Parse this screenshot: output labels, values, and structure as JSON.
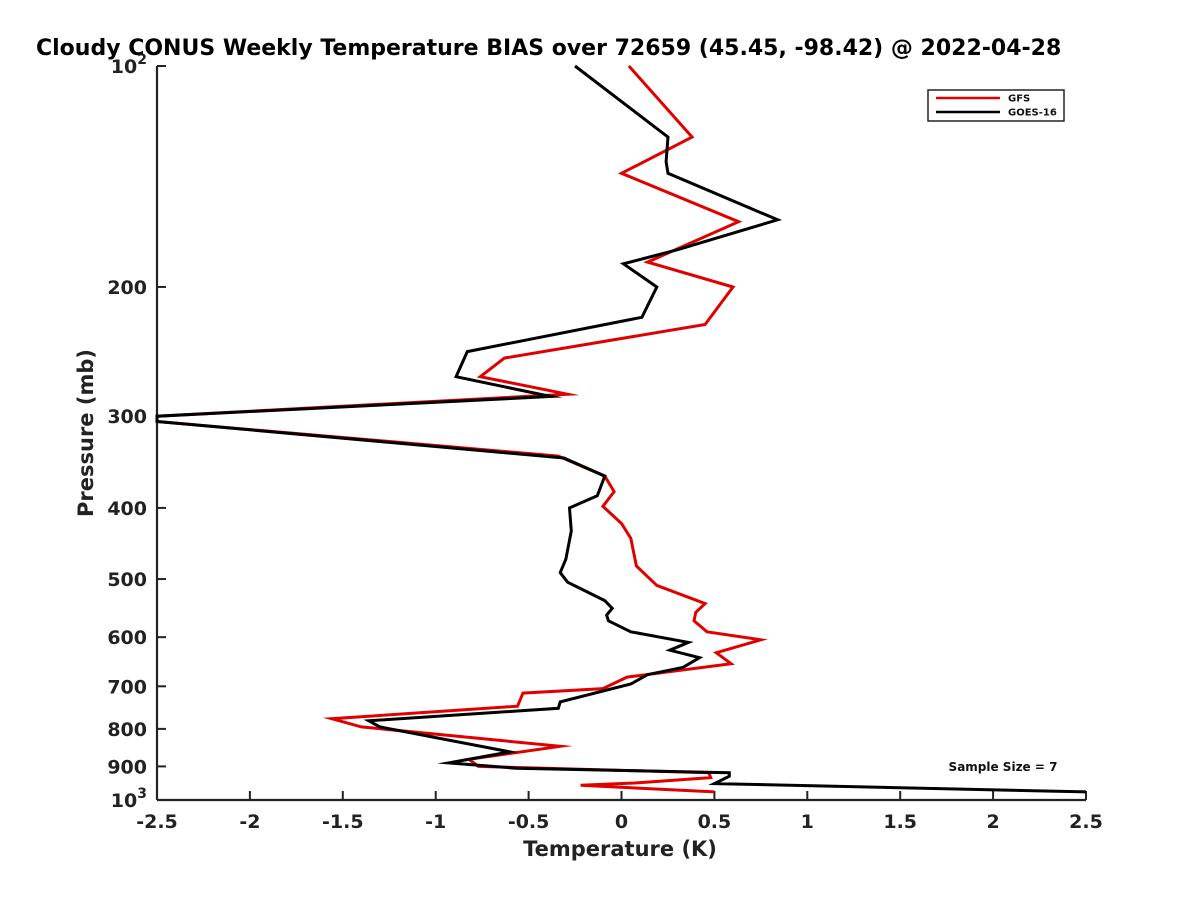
{
  "chart_data": {
    "type": "line",
    "title": "Cloudy CONUS Weekly Temperature BIAS over 72659 (45.45, -98.42) @ 2022-04-28",
    "xlabel": "Temperature (K)",
    "ylabel": "Pressure (mb)",
    "xlim": [
      -2.5,
      2.5
    ],
    "ylim": [
      100,
      1000
    ],
    "yscale": "log",
    "yreversed": true,
    "grid": false,
    "legend_position": "top-right",
    "xticks": [
      -2.5,
      -2,
      -1.5,
      -1,
      -0.5,
      0,
      0.5,
      1,
      1.5,
      2,
      2.5
    ],
    "xtick_labels": [
      "-2.5",
      "-2",
      "-1.5",
      "-1",
      "-0.5",
      "0",
      "0.5",
      "1",
      "1.5",
      "2",
      "2.5"
    ],
    "yticks": [
      100,
      200,
      300,
      400,
      500,
      600,
      700,
      800,
      900,
      1000
    ],
    "ytick_labels": [
      {
        "base": "10",
        "exp": "2"
      },
      {
        "base": "200",
        "exp": ""
      },
      {
        "base": "300",
        "exp": ""
      },
      {
        "base": "400",
        "exp": ""
      },
      {
        "base": "500",
        "exp": ""
      },
      {
        "base": "600",
        "exp": ""
      },
      {
        "base": "700",
        "exp": ""
      },
      {
        "base": "800",
        "exp": ""
      },
      {
        "base": "900",
        "exp": ""
      },
      {
        "base": "10",
        "exp": "3"
      }
    ],
    "annotation": "Sample Size = 7",
    "series": [
      {
        "name": "GFS",
        "color": "#e00000",
        "points": [
          [
            0.04,
            100
          ],
          [
            0.38,
            125
          ],
          [
            0,
            140
          ],
          [
            0.63,
            163
          ],
          [
            0.14,
            185
          ],
          [
            0.6,
            200
          ],
          [
            0.45,
            225
          ],
          [
            -0.63,
            250
          ],
          [
            -0.76,
            265
          ],
          [
            -0.29,
            280
          ],
          [
            -2.5,
            300
          ],
          [
            -2.5,
            305
          ],
          [
            -0.34,
            340
          ],
          [
            -0.09,
            362
          ],
          [
            -0.04,
            380
          ],
          [
            -0.1,
            398
          ],
          [
            0,
            420
          ],
          [
            0.05,
            440
          ],
          [
            0.08,
            480
          ],
          [
            0.19,
            510
          ],
          [
            0.45,
            540
          ],
          [
            0.4,
            555
          ],
          [
            0.39,
            570
          ],
          [
            0.46,
            590
          ],
          [
            0.75,
            605
          ],
          [
            0.51,
            630
          ],
          [
            0.59,
            652
          ],
          [
            0.03,
            680
          ],
          [
            -0.1,
            705
          ],
          [
            -0.53,
            715
          ],
          [
            -0.56,
            745
          ],
          [
            -1.56,
            775
          ],
          [
            -1.4,
            795
          ],
          [
            -0.33,
            845
          ],
          [
            -0.82,
            880
          ],
          [
            -0.77,
            900
          ],
          [
            0.47,
            918
          ],
          [
            0.48,
            932
          ],
          [
            0.07,
            948
          ],
          [
            -0.22,
            955
          ],
          [
            0.5,
            975
          ]
        ]
      },
      {
        "name": "GOES-16",
        "color": "#000000",
        "points": [
          [
            -0.25,
            100
          ],
          [
            0.25,
            125
          ],
          [
            0.24,
            135
          ],
          [
            0.25,
            140
          ],
          [
            0.84,
            162
          ],
          [
            0.3,
            178
          ],
          [
            0.01,
            186
          ],
          [
            0.19,
            200
          ],
          [
            0.11,
            220
          ],
          [
            -0.83,
            245
          ],
          [
            -0.89,
            265
          ],
          [
            -0.38,
            282
          ],
          [
            -2.5,
            300
          ],
          [
            -2.5,
            305
          ],
          [
            -0.31,
            342
          ],
          [
            -0.09,
            362
          ],
          [
            -0.13,
            385
          ],
          [
            -0.28,
            400
          ],
          [
            -0.27,
            430
          ],
          [
            -0.3,
            470
          ],
          [
            -0.33,
            490
          ],
          [
            -0.29,
            505
          ],
          [
            -0.09,
            535
          ],
          [
            -0.05,
            548
          ],
          [
            -0.08,
            560
          ],
          [
            -0.07,
            570
          ],
          [
            0.05,
            590
          ],
          [
            0.36,
            610
          ],
          [
            0.26,
            625
          ],
          [
            0.42,
            640
          ],
          [
            0.33,
            660
          ],
          [
            0.14,
            675
          ],
          [
            0.05,
            695
          ],
          [
            -0.33,
            735
          ],
          [
            -0.34,
            750
          ],
          [
            -1.36,
            780
          ],
          [
            -1.3,
            795
          ],
          [
            -0.6,
            860
          ],
          [
            -0.93,
            890
          ],
          [
            -0.57,
            905
          ],
          [
            0.58,
            918
          ],
          [
            0.58,
            928
          ],
          [
            0.5,
            950
          ],
          [
            2.5,
            975
          ]
        ]
      }
    ]
  }
}
